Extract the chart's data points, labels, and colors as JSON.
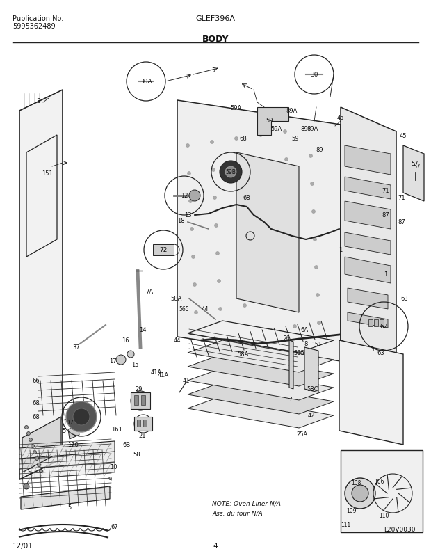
{
  "title_left_line1": "Publication No.",
  "title_left_line2": "5995362489",
  "title_center": "GLEF396A",
  "section_title": "BODY",
  "footer_left": "12/01",
  "footer_center": "4",
  "note_line1": "NOTE: Oven Liner N/A",
  "note_line2": "Ass. du four N/A",
  "image_label": "L20V0030",
  "bg_color": "#ffffff",
  "text_color": "#111111",
  "line_color": "#333333",
  "dark_color": "#222222",
  "mid_color": "#666666",
  "light_color": "#aaaaaa"
}
